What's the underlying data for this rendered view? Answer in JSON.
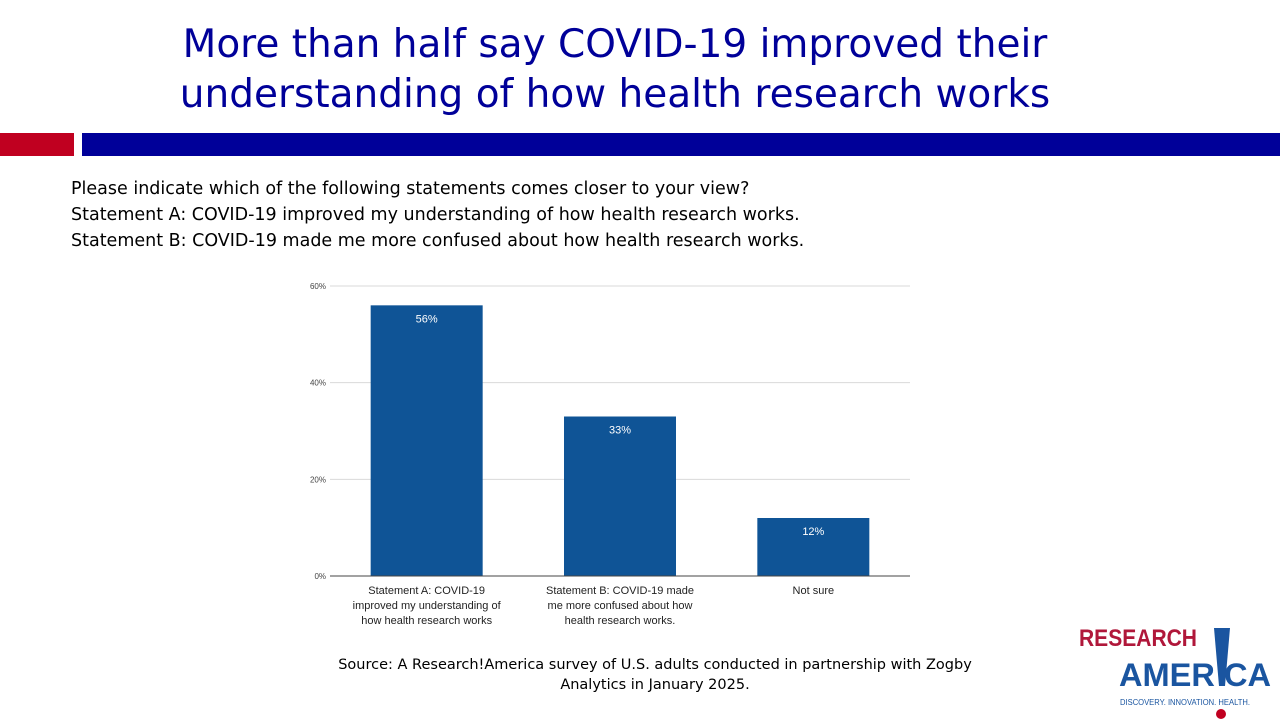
{
  "title": "More than half say COVID-19 improved their understanding of how health research works",
  "question": [
    "Please indicate which of the following statements comes closer to your view?",
    "Statement A: COVID-19 improved my understanding of how health research works.",
    "Statement B: COVID-19 made me more confused about how health research works."
  ],
  "source": "Source: A Research!America survey of U.S. adults conducted in partnership with Zogby Analytics in January 2025.",
  "logo": {
    "line1": "RESEARCH",
    "line2": "AMER!CA",
    "tagline": "DISCOVERY. INNOVATION. HEALTH."
  },
  "colors": {
    "title": "#000099",
    "bar": "#0f5496",
    "accent_red": "#c00020"
  },
  "chart_data": {
    "type": "bar",
    "categories": [
      [
        "Statement A: COVID-19",
        "improved my understanding of",
        "how health research works"
      ],
      [
        "Statement B: COVID-19 made",
        "me more confused about how",
        "health research works."
      ],
      [
        "Not sure"
      ]
    ],
    "values": [
      56,
      33,
      12
    ],
    "data_labels": [
      "56%",
      "33%",
      "12%"
    ],
    "yticks": [
      "0%",
      "20%",
      "40%",
      "60%"
    ],
    "ylim": [
      0,
      60
    ],
    "grid": true,
    "legend": "none"
  }
}
